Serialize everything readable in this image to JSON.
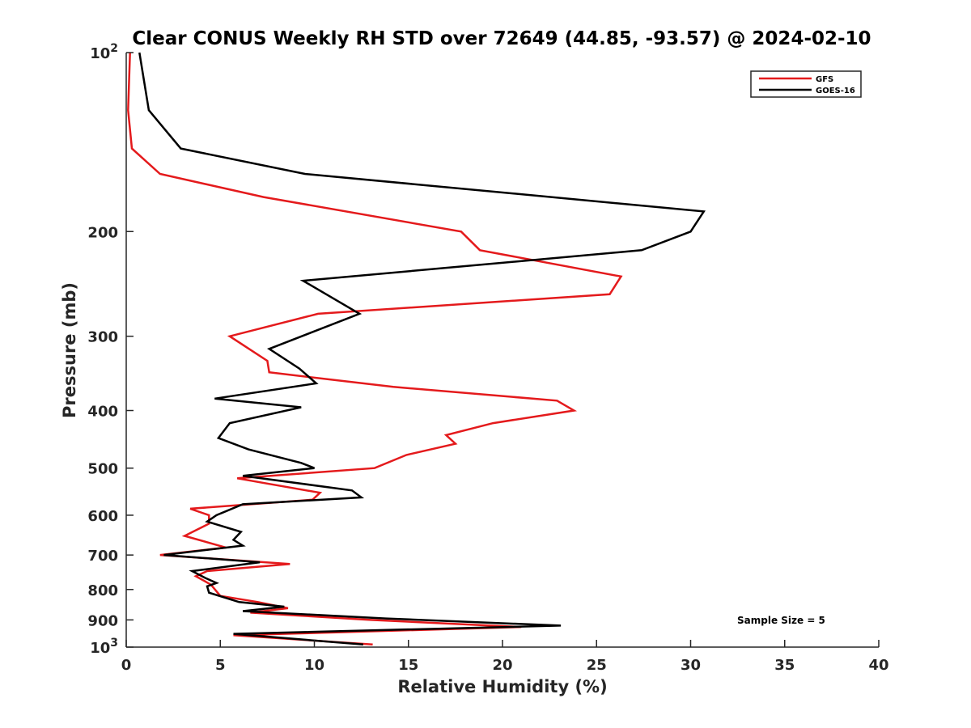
{
  "chart_data": {
    "type": "line",
    "title": "Clear CONUS Weekly RH STD over 72649 (44.85, -93.57) @ 2024-02-10",
    "xlabel": "Relative Humidity (%)",
    "ylabel": "Pressure (mb)",
    "xlim": [
      0,
      40
    ],
    "ylim": [
      100,
      1000
    ],
    "yscale": "log",
    "y_inverted": true,
    "grid": false,
    "legend_position": "top-right",
    "x_ticks": [
      0,
      5,
      10,
      15,
      20,
      25,
      30,
      35,
      40
    ],
    "y_ticks": [
      {
        "value": 100,
        "base": "10",
        "exp": "2"
      },
      {
        "value": 200,
        "label": "200"
      },
      {
        "value": 300,
        "label": "300"
      },
      {
        "value": 400,
        "label": "400"
      },
      {
        "value": 500,
        "label": "500"
      },
      {
        "value": 600,
        "label": "600"
      },
      {
        "value": 700,
        "label": "700"
      },
      {
        "value": 800,
        "label": "800"
      },
      {
        "value": 900,
        "label": "900"
      },
      {
        "value": 1000,
        "base": "10",
        "exp": "3"
      }
    ],
    "annotation": "Sample Size = 5",
    "series": [
      {
        "name": "GFS",
        "color": "#e41a1c",
        "points": [
          [
            0.2,
            100
          ],
          [
            0.1,
            125
          ],
          [
            0.3,
            145
          ],
          [
            1.8,
            160
          ],
          [
            7.3,
            175
          ],
          [
            17.8,
            200
          ],
          [
            18.8,
            215
          ],
          [
            26.3,
            238
          ],
          [
            25.7,
            255
          ],
          [
            10.2,
            275
          ],
          [
            5.5,
            300
          ],
          [
            7.5,
            330
          ],
          [
            7.6,
            345
          ],
          [
            14.2,
            365
          ],
          [
            22.9,
            385
          ],
          [
            23.8,
            400
          ],
          [
            19.5,
            420
          ],
          [
            17.0,
            440
          ],
          [
            17.5,
            455
          ],
          [
            14.9,
            475
          ],
          [
            13.2,
            500
          ],
          [
            5.9,
            520
          ],
          [
            10.3,
            550
          ],
          [
            9.9,
            565
          ],
          [
            3.4,
            585
          ],
          [
            4.4,
            600
          ],
          [
            4.4,
            620
          ],
          [
            3.1,
            650
          ],
          [
            5.3,
            680
          ],
          [
            1.8,
            700
          ],
          [
            8.7,
            725
          ],
          [
            4.3,
            745
          ],
          [
            3.7,
            760
          ],
          [
            4.5,
            785
          ],
          [
            5.0,
            820
          ],
          [
            7.0,
            840
          ],
          [
            8.6,
            860
          ],
          [
            6.6,
            875
          ],
          [
            13.0,
            900
          ],
          [
            21.0,
            925
          ],
          [
            11.0,
            945
          ],
          [
            5.7,
            955
          ],
          [
            13.1,
            990
          ]
        ]
      },
      {
        "name": "GOES-16",
        "color": "#000000",
        "points": [
          [
            0.7,
            100
          ],
          [
            1.2,
            125
          ],
          [
            2.9,
            145
          ],
          [
            9.5,
            160
          ],
          [
            30.7,
            185
          ],
          [
            30.0,
            200
          ],
          [
            27.4,
            215
          ],
          [
            9.4,
            242
          ],
          [
            12.4,
            275
          ],
          [
            7.6,
            315
          ],
          [
            9.2,
            340
          ],
          [
            10.1,
            360
          ],
          [
            4.7,
            382
          ],
          [
            9.3,
            395
          ],
          [
            5.5,
            420
          ],
          [
            4.9,
            445
          ],
          [
            6.5,
            465
          ],
          [
            9.3,
            490
          ],
          [
            10.0,
            500
          ],
          [
            6.2,
            515
          ],
          [
            12.0,
            545
          ],
          [
            12.5,
            560
          ],
          [
            6.2,
            575
          ],
          [
            4.8,
            600
          ],
          [
            4.3,
            615
          ],
          [
            6.1,
            640
          ],
          [
            5.7,
            660
          ],
          [
            6.2,
            675
          ],
          [
            2.0,
            700
          ],
          [
            7.1,
            720
          ],
          [
            3.5,
            745
          ],
          [
            4.2,
            765
          ],
          [
            4.8,
            780
          ],
          [
            4.3,
            790
          ],
          [
            4.4,
            810
          ],
          [
            6.0,
            840
          ],
          [
            8.4,
            855
          ],
          [
            6.2,
            870
          ],
          [
            13.8,
            895
          ],
          [
            23.1,
            920
          ],
          [
            5.7,
            950
          ],
          [
            12.6,
            990
          ]
        ]
      }
    ]
  }
}
